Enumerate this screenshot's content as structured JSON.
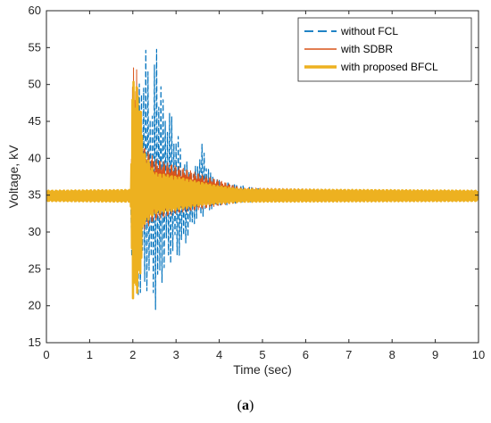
{
  "chart_data": {
    "type": "line",
    "xlabel": "Time (sec)",
    "ylabel": "Voltage, kV",
    "xlim": [
      0,
      10
    ],
    "ylim": [
      15,
      60
    ],
    "xticks": [
      0,
      1,
      2,
      3,
      4,
      5,
      6,
      7,
      8,
      9,
      10
    ],
    "yticks": [
      15,
      20,
      25,
      30,
      35,
      40,
      45,
      50,
      55,
      60
    ],
    "grid": false,
    "legend_position": "top-right",
    "series": [
      {
        "name": "without FCL",
        "color": "#0072BD",
        "style": "dashed",
        "envelope": {
          "x": [
            0,
            1.95,
            2.0,
            2.05,
            2.2,
            2.3,
            2.45,
            2.55,
            2.7,
            2.9,
            3.0,
            3.2,
            3.4,
            3.6,
            3.8,
            4.0,
            4.5,
            5.0,
            5.5,
            10
          ],
          "upper": [
            35.5,
            35.6,
            52.5,
            45,
            53,
            55,
            48,
            57.3,
            48,
            46,
            44,
            40,
            38,
            42,
            38,
            37,
            36.3,
            35.8,
            35.6,
            35.5
          ],
          "lower": [
            34.3,
            34.2,
            18.3,
            23,
            19.5,
            22,
            22,
            18,
            24,
            26,
            26,
            28,
            31,
            32,
            33,
            33.5,
            34,
            34.2,
            34.3,
            34.3
          ]
        }
      },
      {
        "name": "with SDBR",
        "color": "#D95319",
        "style": "solid",
        "envelope": {
          "x": [
            0,
            1.95,
            2.0,
            2.1,
            2.2,
            2.5,
            3.0,
            3.5,
            4.0,
            4.5,
            10
          ],
          "upper": [
            35.5,
            35.6,
            53,
            52,
            42,
            40,
            39,
            38,
            37,
            36,
            35.5
          ],
          "lower": [
            34.3,
            34.2,
            21.5,
            23,
            30,
            31.5,
            32.5,
            33,
            33.6,
            34,
            34.3
          ]
        }
      },
      {
        "name": "with proposed BFCL",
        "color": "#EDB120",
        "style": "solid-thick",
        "envelope": {
          "x": [
            0,
            1.95,
            2.0,
            2.15,
            2.25,
            2.5,
            3.0,
            3.5,
            4.0,
            4.5,
            10
          ],
          "upper": [
            35.6,
            35.7,
            51,
            49,
            41,
            38,
            37.5,
            36.8,
            36.2,
            35.8,
            35.6
          ],
          "lower": [
            34.2,
            34.1,
            21,
            22,
            31,
            32.5,
            33,
            33.6,
            33.9,
            34.1,
            34.2
          ]
        }
      }
    ]
  },
  "caption": {
    "open": "(",
    "label": "a",
    "close": ")"
  }
}
